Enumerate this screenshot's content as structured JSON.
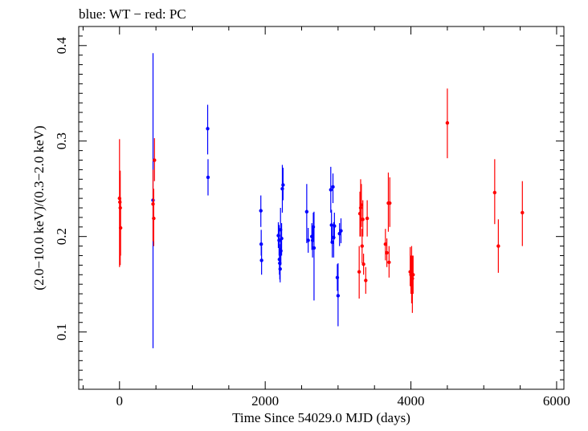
{
  "chart_data": {
    "type": "scatter",
    "title": "blue: WT − red: PC",
    "xlabel": "Time Since 54029.0 MJD (days)",
    "ylabel": "(2.0−10.0 keV)/(0.3−2.0 keV)",
    "xlim": [
      -560,
      6100
    ],
    "ylim": [
      0.04,
      0.42
    ],
    "x_ticks": [
      0,
      2000,
      4000,
      6000
    ],
    "x_tick_labels": [
      "0",
      "2000",
      "4000",
      "6000"
    ],
    "y_ticks": [
      0.1,
      0.2,
      0.3,
      0.4
    ],
    "y_tick_labels": [
      "0.1",
      "0.2",
      "0.3",
      "0.4"
    ],
    "grid": false,
    "colors": {
      "WT": "#0000ff",
      "PC": "#ff0000"
    },
    "series": [
      {
        "name": "WT",
        "color": "#0000ff",
        "points": [
          {
            "x": 460,
            "y": 0.238,
            "yerr_low": 0.083,
            "yerr_high": 0.392
          },
          {
            "x": 1210,
            "y": 0.313,
            "yerr_low": 0.286,
            "yerr_high": 0.338
          },
          {
            "x": 1215,
            "y": 0.262,
            "yerr_low": 0.243,
            "yerr_high": 0.281
          },
          {
            "x": 1940,
            "y": 0.227,
            "yerr_low": 0.21,
            "yerr_high": 0.243
          },
          {
            "x": 1945,
            "y": 0.192,
            "yerr_low": 0.18,
            "yerr_high": 0.207
          },
          {
            "x": 1950,
            "y": 0.175,
            "yerr_low": 0.16,
            "yerr_high": 0.19
          },
          {
            "x": 2180,
            "y": 0.201,
            "yerr_low": 0.188,
            "yerr_high": 0.215
          },
          {
            "x": 2190,
            "y": 0.196,
            "yerr_low": 0.18,
            "yerr_high": 0.212
          },
          {
            "x": 2195,
            "y": 0.176,
            "yerr_low": 0.16,
            "yerr_high": 0.192
          },
          {
            "x": 2200,
            "y": 0.172,
            "yerr_low": 0.155,
            "yerr_high": 0.188
          },
          {
            "x": 2205,
            "y": 0.166,
            "yerr_low": 0.152,
            "yerr_high": 0.18
          },
          {
            "x": 2210,
            "y": 0.207,
            "yerr_low": 0.18,
            "yerr_high": 0.23
          },
          {
            "x": 2215,
            "y": 0.185,
            "yerr_low": 0.17,
            "yerr_high": 0.2
          },
          {
            "x": 2225,
            "y": 0.198,
            "yerr_low": 0.18,
            "yerr_high": 0.214
          },
          {
            "x": 2235,
            "y": 0.25,
            "yerr_low": 0.225,
            "yerr_high": 0.275
          },
          {
            "x": 2245,
            "y": 0.254,
            "yerr_low": 0.238,
            "yerr_high": 0.272
          },
          {
            "x": 2570,
            "y": 0.226,
            "yerr_low": 0.193,
            "yerr_high": 0.255
          },
          {
            "x": 2590,
            "y": 0.196,
            "yerr_low": 0.183,
            "yerr_high": 0.209
          },
          {
            "x": 2640,
            "y": 0.2,
            "yerr_low": 0.186,
            "yerr_high": 0.214
          },
          {
            "x": 2650,
            "y": 0.196,
            "yerr_low": 0.178,
            "yerr_high": 0.21
          },
          {
            "x": 2660,
            "y": 0.21,
            "yerr_low": 0.195,
            "yerr_high": 0.225
          },
          {
            "x": 2670,
            "y": 0.188,
            "yerr_low": 0.133,
            "yerr_high": 0.226
          },
          {
            "x": 2900,
            "y": 0.249,
            "yerr_low": 0.225,
            "yerr_high": 0.273
          },
          {
            "x": 2910,
            "y": 0.212,
            "yerr_low": 0.195,
            "yerr_high": 0.228
          },
          {
            "x": 2920,
            "y": 0.194,
            "yerr_low": 0.178,
            "yerr_high": 0.21
          },
          {
            "x": 2930,
            "y": 0.252,
            "yerr_low": 0.235,
            "yerr_high": 0.266
          },
          {
            "x": 2940,
            "y": 0.199,
            "yerr_low": 0.178,
            "yerr_high": 0.215
          },
          {
            "x": 2950,
            "y": 0.211,
            "yerr_low": 0.197,
            "yerr_high": 0.225
          },
          {
            "x": 2990,
            "y": 0.157,
            "yerr_low": 0.143,
            "yerr_high": 0.171
          },
          {
            "x": 3000,
            "y": 0.138,
            "yerr_low": 0.106,
            "yerr_high": 0.172
          },
          {
            "x": 3020,
            "y": 0.203,
            "yerr_low": 0.19,
            "yerr_high": 0.214
          },
          {
            "x": 3040,
            "y": 0.206,
            "yerr_low": 0.193,
            "yerr_high": 0.219
          }
        ]
      },
      {
        "name": "PC",
        "color": "#ff0000",
        "points": [
          {
            "x": 0,
            "y": 0.24,
            "yerr_low": 0.168,
            "yerr_high": 0.302
          },
          {
            "x": 5,
            "y": 0.236,
            "yerr_low": 0.21,
            "yerr_high": 0.262
          },
          {
            "x": 10,
            "y": 0.23,
            "yerr_low": 0.17,
            "yerr_high": 0.269
          },
          {
            "x": 15,
            "y": 0.209,
            "yerr_low": 0.18,
            "yerr_high": 0.24
          },
          {
            "x": 460,
            "y": 0.234,
            "yerr_low": 0.195,
            "yerr_high": 0.27
          },
          {
            "x": 470,
            "y": 0.219,
            "yerr_low": 0.19,
            "yerr_high": 0.25
          },
          {
            "x": 480,
            "y": 0.28,
            "yerr_low": 0.258,
            "yerr_high": 0.303
          },
          {
            "x": 3290,
            "y": 0.163,
            "yerr_low": 0.135,
            "yerr_high": 0.19
          },
          {
            "x": 3300,
            "y": 0.224,
            "yerr_low": 0.2,
            "yerr_high": 0.247
          },
          {
            "x": 3310,
            "y": 0.23,
            "yerr_low": 0.2,
            "yerr_high": 0.26
          },
          {
            "x": 3320,
            "y": 0.233,
            "yerr_low": 0.21,
            "yerr_high": 0.255
          },
          {
            "x": 3330,
            "y": 0.19,
            "yerr_low": 0.172,
            "yerr_high": 0.208
          },
          {
            "x": 3340,
            "y": 0.218,
            "yerr_low": 0.2,
            "yerr_high": 0.238
          },
          {
            "x": 3350,
            "y": 0.171,
            "yerr_low": 0.16,
            "yerr_high": 0.182
          },
          {
            "x": 3380,
            "y": 0.154,
            "yerr_low": 0.14,
            "yerr_high": 0.168
          },
          {
            "x": 3400,
            "y": 0.219,
            "yerr_low": 0.2,
            "yerr_high": 0.238
          },
          {
            "x": 3650,
            "y": 0.192,
            "yerr_low": 0.175,
            "yerr_high": 0.208
          },
          {
            "x": 3670,
            "y": 0.183,
            "yerr_low": 0.168,
            "yerr_high": 0.198
          },
          {
            "x": 3690,
            "y": 0.235,
            "yerr_low": 0.205,
            "yerr_high": 0.267
          },
          {
            "x": 3700,
            "y": 0.173,
            "yerr_low": 0.157,
            "yerr_high": 0.19
          },
          {
            "x": 3710,
            "y": 0.235,
            "yerr_low": 0.21,
            "yerr_high": 0.262
          },
          {
            "x": 3990,
            "y": 0.163,
            "yerr_low": 0.148,
            "yerr_high": 0.189
          },
          {
            "x": 4000,
            "y": 0.16,
            "yerr_low": 0.14,
            "yerr_high": 0.18
          },
          {
            "x": 4010,
            "y": 0.158,
            "yerr_low": 0.13,
            "yerr_high": 0.19
          },
          {
            "x": 4020,
            "y": 0.156,
            "yerr_low": 0.12,
            "yerr_high": 0.18
          },
          {
            "x": 4030,
            "y": 0.16,
            "yerr_low": 0.14,
            "yerr_high": 0.18
          },
          {
            "x": 4500,
            "y": 0.319,
            "yerr_low": 0.282,
            "yerr_high": 0.355
          },
          {
            "x": 5150,
            "y": 0.246,
            "yerr_low": 0.213,
            "yerr_high": 0.281
          },
          {
            "x": 5200,
            "y": 0.19,
            "yerr_low": 0.162,
            "yerr_high": 0.218
          },
          {
            "x": 5530,
            "y": 0.225,
            "yerr_low": 0.19,
            "yerr_high": 0.258
          }
        ]
      }
    ]
  }
}
